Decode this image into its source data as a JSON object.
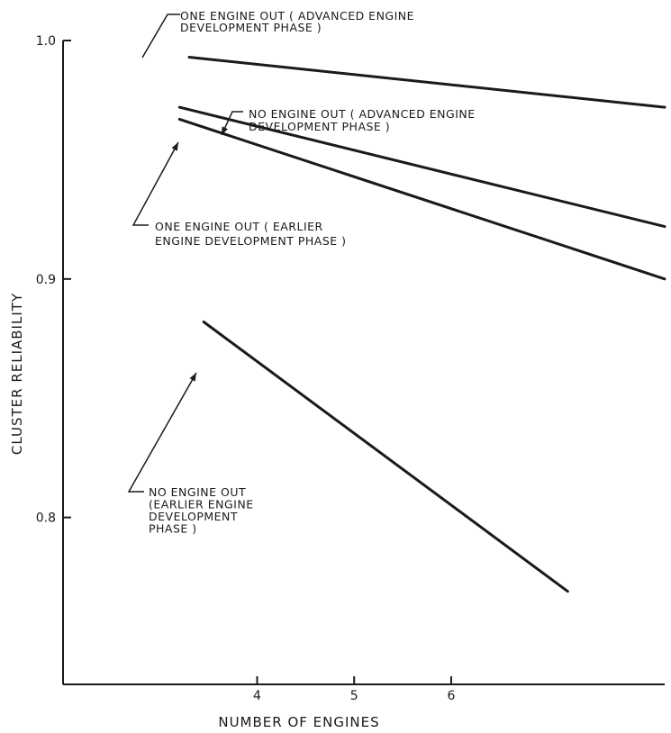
{
  "chart_data": {
    "type": "line",
    "title": "",
    "xlabel": "NUMBER OF ENGINES",
    "ylabel": "CLUSTER RELIABILITY",
    "xlim": [
      2.0,
      8.2
    ],
    "ylim": [
      0.73,
      1.0
    ],
    "x_ticks": [
      4,
      5,
      6
    ],
    "y_ticks": [
      0.8,
      0.9,
      1.0
    ],
    "y_tick_labels": [
      "0.8",
      "0.9",
      "1.0"
    ],
    "grid": false,
    "series": [
      {
        "name": "ONE ENGINE OUT ( ADVANCED ENGINE DEVELOPMENT PHASE )",
        "label_lines": [
          "ONE ENGINE OUT ( ADVANCED ENGINE",
          "DEVELOPMENT PHASE )"
        ],
        "x": [
          3.3,
          8.2
        ],
        "y": [
          0.993,
          0.972
        ]
      },
      {
        "name": "NO ENGINE OUT ( ADVANCED ENGINE DEVELOPMENT PHASE )",
        "label_lines": [
          "NO ENGINE OUT ( ADVANCED ENGINE",
          "DEVELOPMENT PHASE )"
        ],
        "x": [
          3.2,
          8.2
        ],
        "y": [
          0.972,
          0.922
        ]
      },
      {
        "name": "ONE ENGINE OUT ( EARLIER ENGINE DEVELOPMENT PHASE )",
        "label_lines": [
          "ONE ENGINE OUT ( EARLIER",
          "ENGINE DEVELOPMENT PHASE )"
        ],
        "x": [
          3.2,
          8.2
        ],
        "y": [
          0.967,
          0.9
        ]
      },
      {
        "name": "NO ENGINE OUT (EARLIER ENGINE DEVELOPMENT PHASE )",
        "label_lines": [
          "NO ENGINE OUT",
          "(EARLIER ENGINE",
          "DEVELOPMENT",
          "PHASE )"
        ],
        "x": [
          3.45,
          7.2
        ],
        "y": [
          0.882,
          0.769
        ]
      }
    ]
  }
}
